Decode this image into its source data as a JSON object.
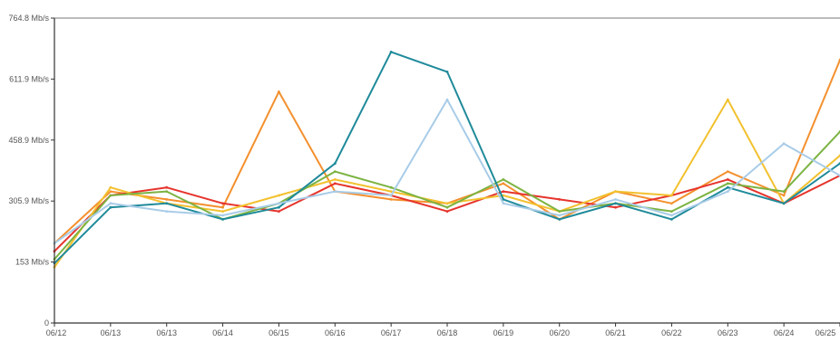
{
  "chart_data": {
    "type": "line",
    "title": "",
    "xlabel": "",
    "ylabel": "",
    "ylim": [
      0,
      764.8
    ],
    "y_unit": "Mb/s",
    "y_ticks": [
      0,
      153,
      305.9,
      458.9,
      611.9,
      764.8
    ],
    "y_tick_labels": [
      "0",
      "153 Mb/s",
      "305.9 Mb/s",
      "458.9 Mb/s",
      "611.9 Mb/s",
      "764.8 Mb/s"
    ],
    "x_tick_labels": [
      "06/12",
      "06/13",
      "06/13",
      "06/14",
      "06/15",
      "06/16",
      "06/17",
      "06/18",
      "06/19",
      "06/20",
      "06/21",
      "06/22",
      "06/23",
      "06/24",
      "06/25"
    ],
    "grid": false,
    "legend": "none",
    "x": [
      "06/12",
      "06/13",
      "06/13",
      "06/14",
      "06/15",
      "06/16",
      "06/17",
      "06/18",
      "06/19",
      "06/20",
      "06/21",
      "06/22",
      "06/23",
      "06/24",
      "06/25"
    ],
    "series": [
      {
        "color": "#f4902e",
        "values": [
          200,
          330,
          310,
          290,
          580,
          330,
          310,
          300,
          350,
          260,
          330,
          300,
          380,
          320,
          660
        ]
      },
      {
        "color": "#e6342c",
        "values": [
          180,
          320,
          340,
          300,
          280,
          350,
          320,
          280,
          330,
          310,
          290,
          320,
          360,
          300,
          370
        ]
      },
      {
        "color": "#f2c12e",
        "values": [
          140,
          340,
          300,
          280,
          320,
          360,
          330,
          300,
          320,
          280,
          330,
          320,
          560,
          300,
          420
        ]
      },
      {
        "color": "#7cb342",
        "values": [
          160,
          320,
          330,
          260,
          300,
          380,
          340,
          290,
          360,
          280,
          300,
          280,
          350,
          330,
          480
        ]
      },
      {
        "color": "#1f8a9a",
        "values": [
          150,
          290,
          300,
          260,
          290,
          400,
          680,
          630,
          310,
          260,
          300,
          260,
          340,
          300,
          400
        ]
      },
      {
        "color": "#a8cce8",
        "values": [
          200,
          300,
          280,
          270,
          300,
          330,
          320,
          560,
          300,
          270,
          310,
          270,
          330,
          450,
          370
        ]
      }
    ]
  }
}
